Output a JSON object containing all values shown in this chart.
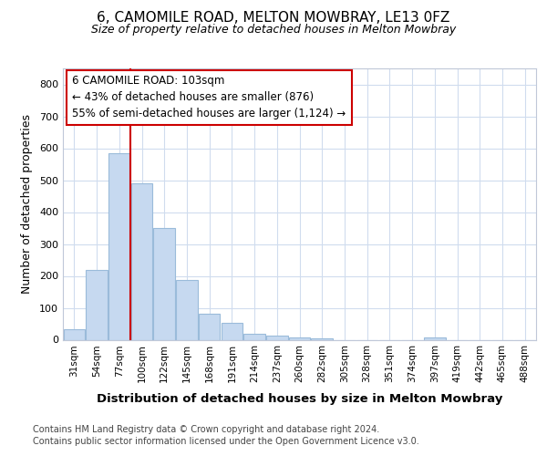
{
  "title1": "6, CAMOMILE ROAD, MELTON MOWBRAY, LE13 0FZ",
  "title2": "Size of property relative to detached houses in Melton Mowbray",
  "xlabel": "Distribution of detached houses by size in Melton Mowbray",
  "ylabel": "Number of detached properties",
  "categories": [
    "31sqm",
    "54sqm",
    "77sqm",
    "100sqm",
    "122sqm",
    "145sqm",
    "168sqm",
    "191sqm",
    "214sqm",
    "237sqm",
    "260sqm",
    "282sqm",
    "305sqm",
    "328sqm",
    "351sqm",
    "374sqm",
    "397sqm",
    "419sqm",
    "442sqm",
    "465sqm",
    "488sqm"
  ],
  "values": [
    33,
    220,
    585,
    490,
    350,
    188,
    82,
    52,
    18,
    14,
    8,
    4,
    0,
    0,
    0,
    0,
    7,
    0,
    0,
    0,
    0
  ],
  "bar_color": "#c6d9f0",
  "bar_edge_color": "#9abbda",
  "vline_color": "#cc0000",
  "vline_x_idx": 2.5,
  "annotation_text": "6 CAMOMILE ROAD: 103sqm\n← 43% of detached houses are smaller (876)\n55% of semi-detached houses are larger (1,124) →",
  "annotation_box_color": "#ffffff",
  "annotation_box_edge_color": "#cc0000",
  "ylim": [
    0,
    850
  ],
  "yticks": [
    0,
    100,
    200,
    300,
    400,
    500,
    600,
    700,
    800
  ],
  "footer1": "Contains HM Land Registry data © Crown copyright and database right 2024.",
  "footer2": "Contains public sector information licensed under the Open Government Licence v3.0.",
  "bg_color": "#ffffff",
  "grid_color": "#d0dcee"
}
